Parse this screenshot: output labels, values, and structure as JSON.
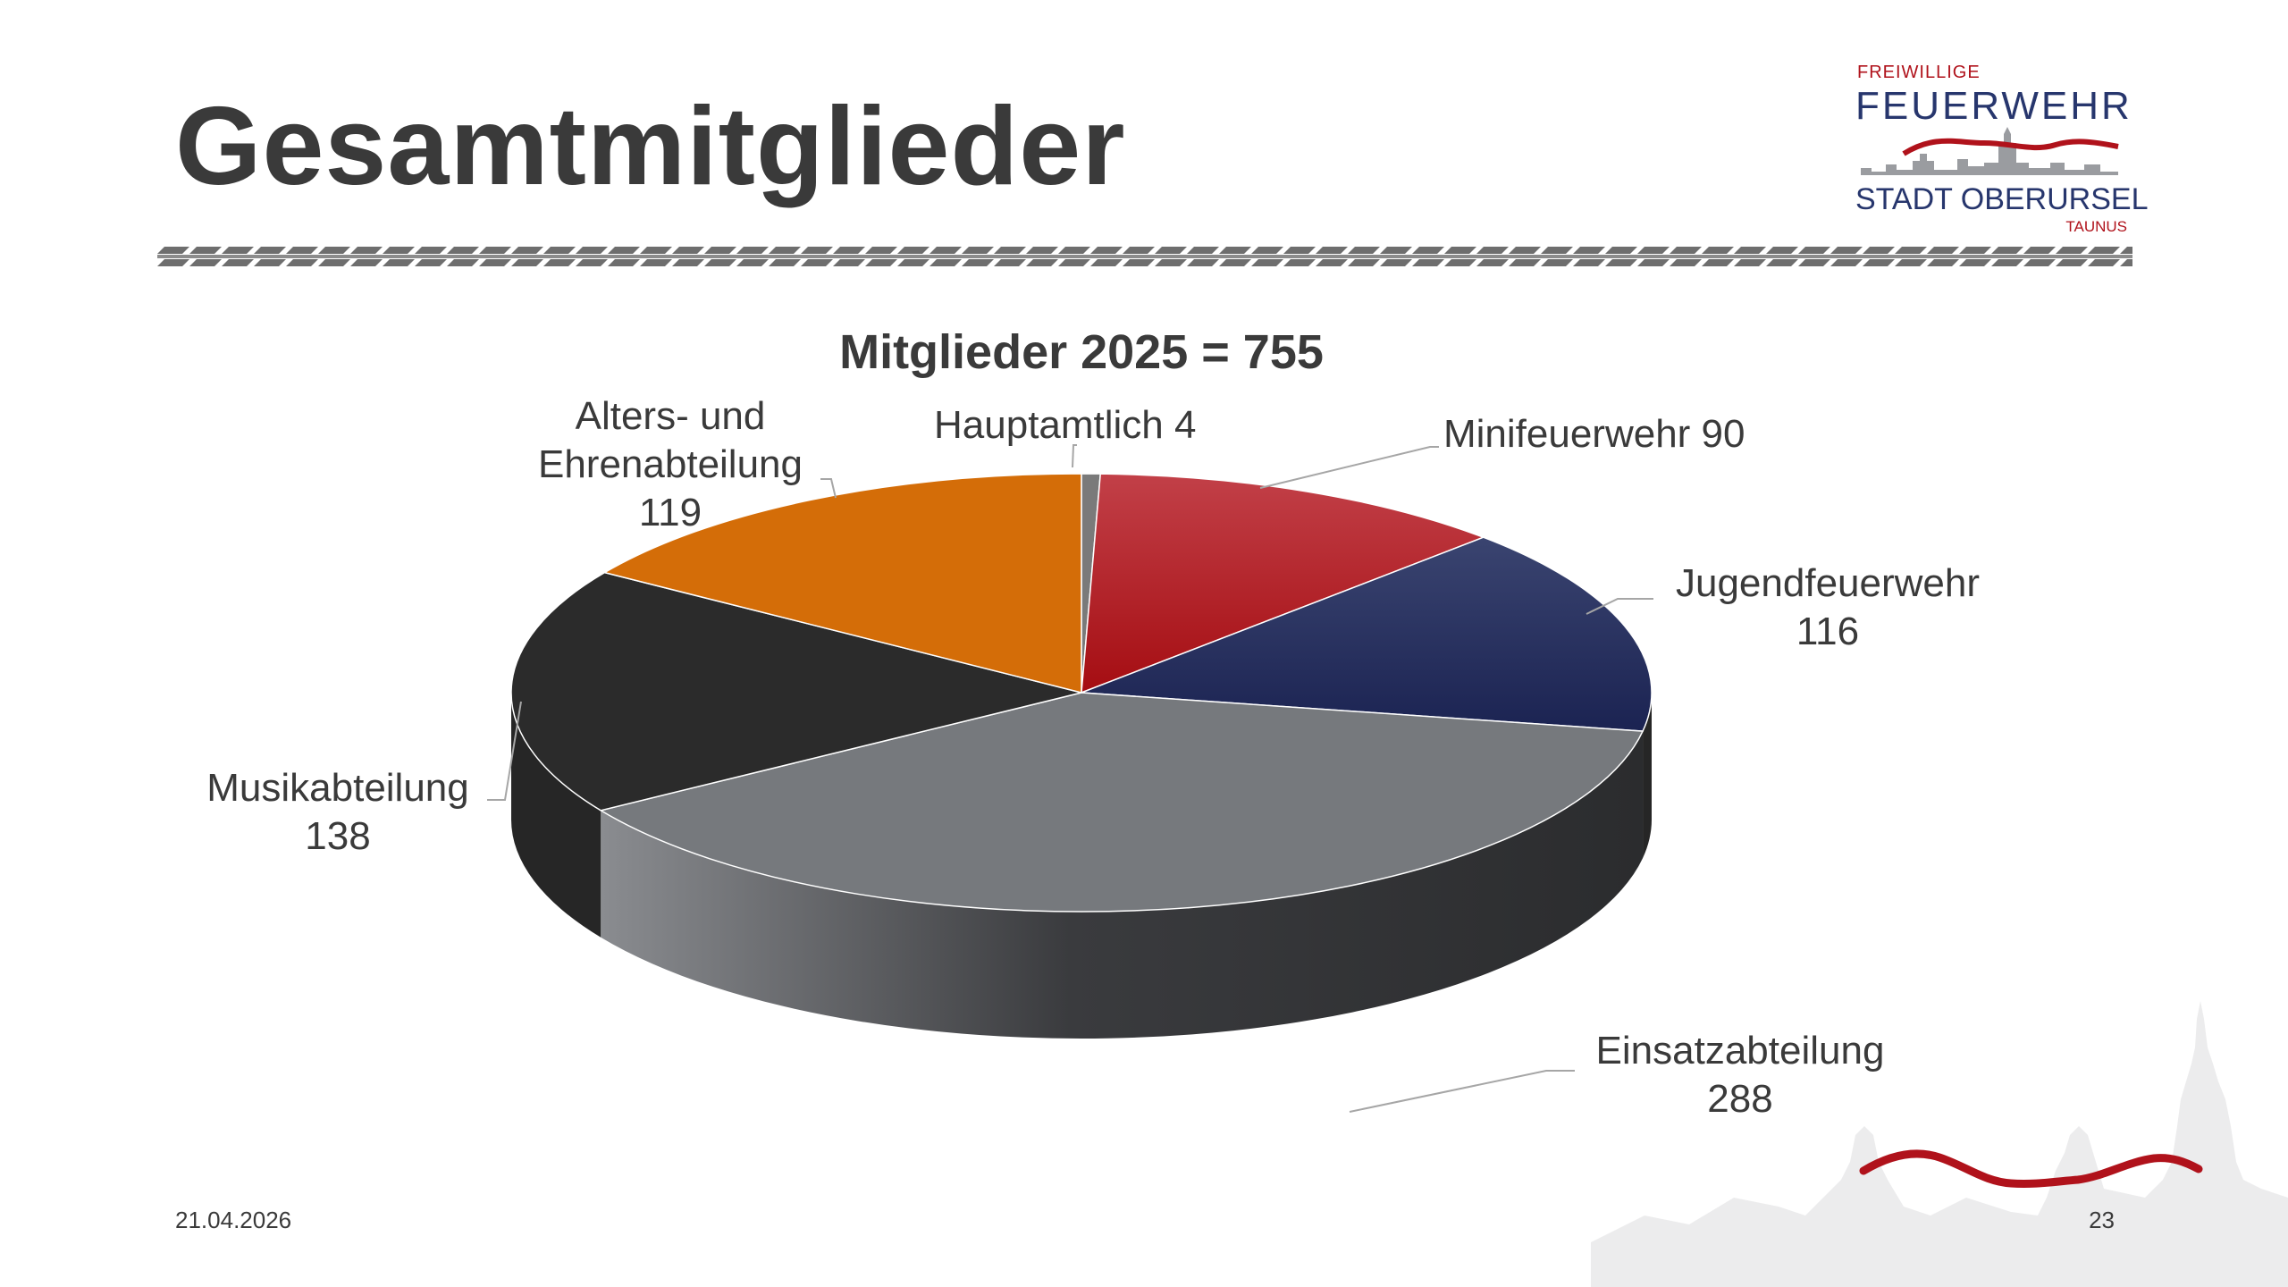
{
  "slide": {
    "title": "Gesamtmitglieder",
    "date": "21.04.2026",
    "page_number": "23"
  },
  "logo": {
    "line1": "FREIWILLIGE",
    "line2": "FEUERWEHR",
    "line3": "STADT OBERURSEL",
    "line4": "TAUNUS"
  },
  "colors": {
    "title": "#3a3a3a",
    "brand_red": "#b0121b",
    "brand_blue": "#27366d"
  },
  "chart_data": {
    "type": "pie",
    "style": "3d",
    "title": "Mitglieder 2025 = 755",
    "slices": [
      {
        "name": "Hauptamtlich",
        "value": 4,
        "label_lines": [
          "Hauptamtlich 4"
        ],
        "color": "#7a7a7a"
      },
      {
        "name": "Minifeuerwehr",
        "value": 90,
        "label_lines": [
          "Minifeuerwehr 90"
        ],
        "color": "#a51218"
      },
      {
        "name": "Jugendfeuerwehr",
        "value": 116,
        "label_lines": [
          "Jugendfeuerwehr",
          "116"
        ],
        "color": "#1f2a5a"
      },
      {
        "name": "Einsatzabteilung",
        "value": 288,
        "label_lines": [
          "Einsatzabteilung",
          "288"
        ],
        "color": "#76797d"
      },
      {
        "name": "Musikabteilung",
        "value": 138,
        "label_lines": [
          "Musikabteilung",
          "138"
        ],
        "color": "#2b2b2b"
      },
      {
        "name": "Alters- und Ehrenabteilung",
        "value": 119,
        "label_lines": [
          "Alters- und",
          "Ehrenabteilung",
          "119"
        ],
        "color": "#d46d08"
      }
    ]
  }
}
